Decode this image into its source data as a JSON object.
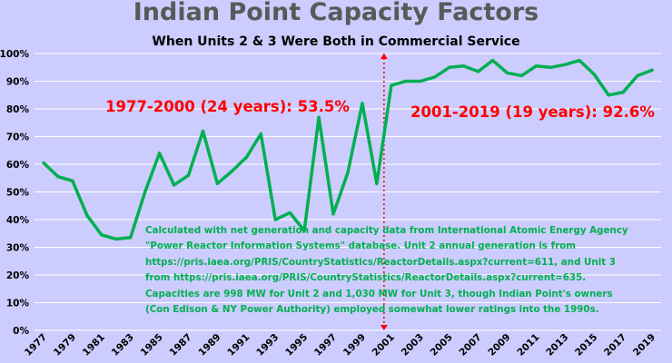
{
  "title": "Indian Point Capacity Factors",
  "subtitle": "When Units 2 & 3 Were Both in Commercial Service",
  "annotations": {
    "period1": "1977-2000 (24 years): 53.5%",
    "period2": "2001-2019 (19 years): 92.6%"
  },
  "source_note": [
    "Calculated with net generation and capacity data from International Atomic Energy Agency",
    "\"Power Reactor Information Systems\" database. Unit 2 annual generation is from",
    "https://pris.iaea.org/PRIS/CountryStatistics/ReactorDetails.aspx?current=611, and Unit 3",
    "from https://pris.iaea.org/PRIS/CountryStatistics/ReactorDetails.aspx?current=635.",
    "Capacities are 998 MW for Unit 2 and 1,030 MW for Unit 3, though Indian Point's owners",
    "(Con Edison & NY Power Authority) employed somewhat lower ratings into the 1990s."
  ],
  "colors": {
    "background": "#ccccff",
    "line": "#00b050",
    "gridline": "#ffffff",
    "annotation": "#ff0000",
    "divider": "#ff0000",
    "title": "#595959"
  },
  "chart_data": {
    "type": "line",
    "title": "Indian Point Capacity Factors",
    "subtitle": "When Units 2 & 3 Were Both in Commercial Service",
    "xlabel": "",
    "ylabel": "",
    "ylim": [
      0,
      100
    ],
    "y_ticks": [
      "0%",
      "10%",
      "20%",
      "30%",
      "40%",
      "50%",
      "60%",
      "70%",
      "80%",
      "90%",
      "100%"
    ],
    "x_ticks": [
      "1977",
      "1979",
      "1981",
      "1983",
      "1985",
      "1987",
      "1989",
      "1991",
      "1993",
      "1995",
      "1997",
      "1999",
      "2001",
      "2003",
      "2005",
      "2007",
      "2009",
      "2011",
      "2013",
      "2015",
      "2017",
      "2019"
    ],
    "grid": true,
    "legend": "none",
    "divider_year": 2000.5,
    "series": [
      {
        "x": [
          1977,
          1978,
          1979,
          1980,
          1981,
          1982,
          1983,
          1984,
          1985,
          1986,
          1987,
          1988,
          1989,
          1990,
          1991,
          1992,
          1993,
          1994,
          1995,
          1996,
          1997,
          1998,
          1999,
          2000,
          2001,
          2002,
          2003,
          2004,
          2005,
          2006,
          2007,
          2008,
          2009,
          2010,
          2011,
          2012,
          2013,
          2014,
          2015,
          2016,
          2017,
          2018,
          2019
        ],
        "values": [
          60.5,
          55.5,
          54.0,
          41.5,
          34.5,
          33.0,
          33.5,
          50.0,
          64.0,
          52.5,
          56.0,
          72.0,
          53.0,
          57.5,
          62.5,
          71.0,
          40.0,
          42.5,
          36.0,
          77.0,
          42.0,
          57.0,
          82.0,
          53.0,
          88.5,
          90.0,
          90.0,
          91.5,
          95.0,
          95.5,
          93.5,
          97.5,
          93.0,
          92.0,
          95.5,
          95.0,
          96.0,
          97.5,
          92.5,
          85.0,
          86.0,
          92.0,
          94.0
        ]
      }
    ],
    "annotations": [
      "1977-2000 (24 years): 53.5%",
      "2001-2019 (19 years): 92.6%"
    ]
  }
}
